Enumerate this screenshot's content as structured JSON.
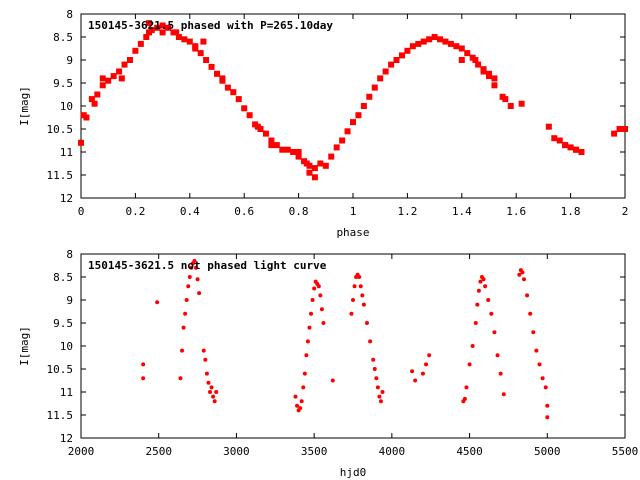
{
  "chart_data": [
    {
      "type": "scatter",
      "title": "150145-3621.5 phased with P=265.10day",
      "xlabel": "phase",
      "ylabel": "I[mag]",
      "xlim": [
        0,
        2
      ],
      "ylim": [
        12,
        8
      ],
      "y_inverted": true,
      "xticks": [
        "0",
        "0.2",
        "0.4",
        "0.6",
        "0.8",
        "1",
        "1.2",
        "1.4",
        "1.6",
        "1.8",
        "2"
      ],
      "yticks": [
        "8",
        "8.5",
        "9",
        "9.5",
        "10",
        "10.5",
        "11",
        "11.5",
        "12"
      ],
      "grid": false,
      "marker_color": "#ff0000",
      "series": [
        {
          "points": [
            [
              0.0,
              10.8
            ],
            [
              0.01,
              10.2
            ],
            [
              0.02,
              10.25
            ],
            [
              0.04,
              9.85
            ],
            [
              0.05,
              9.95
            ],
            [
              0.06,
              9.75
            ],
            [
              0.08,
              9.55
            ],
            [
              0.1,
              9.45
            ],
            [
              0.12,
              9.35
            ],
            [
              0.14,
              9.25
            ],
            [
              0.16,
              9.1
            ],
            [
              0.18,
              9.0
            ],
            [
              0.2,
              8.8
            ],
            [
              0.22,
              8.65
            ],
            [
              0.24,
              8.5
            ],
            [
              0.25,
              8.4
            ],
            [
              0.26,
              8.35
            ],
            [
              0.28,
              8.3
            ],
            [
              0.3,
              8.25
            ],
            [
              0.32,
              8.3
            ],
            [
              0.34,
              8.4
            ],
            [
              0.36,
              8.5
            ],
            [
              0.38,
              8.55
            ],
            [
              0.4,
              8.6
            ],
            [
              0.42,
              8.7
            ],
            [
              0.44,
              8.85
            ],
            [
              0.46,
              9.0
            ],
            [
              0.48,
              9.15
            ],
            [
              0.5,
              9.3
            ],
            [
              0.52,
              9.45
            ],
            [
              0.54,
              9.6
            ],
            [
              0.56,
              9.7
            ],
            [
              0.58,
              9.85
            ],
            [
              0.6,
              10.05
            ],
            [
              0.62,
              10.2
            ],
            [
              0.64,
              10.4
            ],
            [
              0.66,
              10.5
            ],
            [
              0.68,
              10.6
            ],
            [
              0.7,
              10.75
            ],
            [
              0.72,
              10.85
            ],
            [
              0.74,
              10.95
            ],
            [
              0.76,
              10.95
            ],
            [
              0.78,
              11.0
            ],
            [
              0.8,
              11.1
            ],
            [
              0.82,
              11.2
            ],
            [
              0.84,
              11.3
            ],
            [
              0.86,
              11.35
            ],
            [
              0.88,
              11.25
            ],
            [
              0.9,
              11.3
            ],
            [
              0.92,
              11.1
            ],
            [
              0.94,
              10.9
            ],
            [
              0.96,
              10.75
            ],
            [
              0.98,
              10.55
            ],
            [
              1.0,
              10.35
            ],
            [
              1.02,
              10.2
            ],
            [
              1.04,
              10.0
            ],
            [
              1.06,
              9.8
            ],
            [
              1.08,
              9.6
            ],
            [
              1.1,
              9.4
            ],
            [
              1.12,
              9.25
            ],
            [
              1.14,
              9.1
            ],
            [
              1.16,
              9.0
            ],
            [
              1.18,
              8.9
            ],
            [
              1.2,
              8.8
            ],
            [
              1.22,
              8.7
            ],
            [
              1.24,
              8.65
            ],
            [
              1.26,
              8.6
            ],
            [
              1.28,
              8.55
            ],
            [
              1.3,
              8.5
            ],
            [
              1.32,
              8.55
            ],
            [
              1.34,
              8.6
            ],
            [
              1.36,
              8.65
            ],
            [
              1.38,
              8.7
            ],
            [
              1.4,
              8.75
            ],
            [
              1.42,
              8.85
            ],
            [
              1.44,
              8.95
            ],
            [
              1.46,
              9.1
            ],
            [
              1.48,
              9.25
            ],
            [
              1.5,
              9.35
            ],
            [
              1.52,
              9.55
            ],
            [
              1.55,
              9.8
            ],
            [
              1.58,
              10.0
            ],
            [
              1.62,
              9.95
            ],
            [
              1.72,
              10.45
            ],
            [
              1.74,
              10.7
            ],
            [
              1.76,
              10.75
            ],
            [
              1.78,
              10.85
            ],
            [
              1.8,
              10.9
            ],
            [
              1.82,
              10.95
            ],
            [
              1.84,
              11.0
            ],
            [
              1.96,
              10.6
            ],
            [
              1.98,
              10.5
            ],
            [
              2.0,
              10.5
            ],
            [
              0.25,
              8.2
            ],
            [
              0.15,
              9.4
            ],
            [
              0.45,
              8.6
            ],
            [
              0.08,
              9.4
            ],
            [
              0.52,
              9.4
            ],
            [
              0.86,
              11.55
            ],
            [
              0.84,
              11.45
            ],
            [
              0.83,
              11.25
            ],
            [
              0.8,
              11.0
            ],
            [
              1.45,
              9.0
            ],
            [
              1.4,
              9.0
            ],
            [
              1.5,
              9.3
            ],
            [
              1.52,
              9.4
            ],
            [
              1.56,
              9.85
            ],
            [
              1.48,
              9.2
            ],
            [
              0.3,
              8.4
            ],
            [
              0.35,
              8.4
            ],
            [
              0.42,
              8.75
            ],
            [
              0.65,
              10.45
            ],
            [
              0.7,
              10.85
            ],
            [
              1.78,
              10.85
            ],
            [
              1.82,
              10.95
            ]
          ]
        }
      ]
    },
    {
      "type": "scatter",
      "title": "150145-3621.5 not phased light curve",
      "xlabel": "hjd0",
      "ylabel": "I[mag]",
      "xlim": [
        2000,
        5500
      ],
      "ylim": [
        12,
        8
      ],
      "y_inverted": true,
      "xticks": [
        "2000",
        "2500",
        "3000",
        "3500",
        "4000",
        "4500",
        "5000",
        "5500"
      ],
      "yticks": [
        "8",
        "8.5",
        "9",
        "9.5",
        "10",
        "10.5",
        "11",
        "11.5",
        "12"
      ],
      "grid": false,
      "marker_color": "#ff0000",
      "series": [
        {
          "points": [
            [
              2400,
              10.4
            ],
            [
              2400,
              10.7
            ],
            [
              2490,
              9.05
            ],
            [
              2640,
              10.7
            ],
            [
              2650,
              10.1
            ],
            [
              2660,
              9.6
            ],
            [
              2670,
              9.3
            ],
            [
              2680,
              9.0
            ],
            [
              2690,
              8.7
            ],
            [
              2700,
              8.5
            ],
            [
              2710,
              8.3
            ],
            [
              2720,
              8.2
            ],
            [
              2730,
              8.15
            ],
            [
              2740,
              8.3
            ],
            [
              2750,
              8.55
            ],
            [
              2760,
              8.85
            ],
            [
              2790,
              10.1
            ],
            [
              2800,
              10.3
            ],
            [
              2810,
              10.6
            ],
            [
              2820,
              10.8
            ],
            [
              2830,
              11.0
            ],
            [
              2840,
              10.9
            ],
            [
              2850,
              11.1
            ],
            [
              2860,
              11.2
            ],
            [
              2870,
              11.0
            ],
            [
              3380,
              11.1
            ],
            [
              3390,
              11.3
            ],
            [
              3400,
              11.4
            ],
            [
              3410,
              11.35
            ],
            [
              3420,
              11.2
            ],
            [
              3430,
              10.9
            ],
            [
              3440,
              10.6
            ],
            [
              3450,
              10.2
            ],
            [
              3460,
              9.9
            ],
            [
              3470,
              9.6
            ],
            [
              3480,
              9.3
            ],
            [
              3490,
              9.0
            ],
            [
              3500,
              8.75
            ],
            [
              3510,
              8.6
            ],
            [
              3520,
              8.65
            ],
            [
              3530,
              8.7
            ],
            [
              3540,
              8.9
            ],
            [
              3550,
              9.2
            ],
            [
              3560,
              9.5
            ],
            [
              3620,
              10.75
            ],
            [
              3740,
              9.3
            ],
            [
              3750,
              9.0
            ],
            [
              3760,
              8.7
            ],
            [
              3770,
              8.5
            ],
            [
              3780,
              8.45
            ],
            [
              3790,
              8.5
            ],
            [
              3800,
              8.7
            ],
            [
              3810,
              8.9
            ],
            [
              3820,
              9.1
            ],
            [
              3840,
              9.5
            ],
            [
              3860,
              9.9
            ],
            [
              3880,
              10.3
            ],
            [
              3890,
              10.5
            ],
            [
              3900,
              10.7
            ],
            [
              3910,
              10.9
            ],
            [
              3920,
              11.1
            ],
            [
              3930,
              11.2
            ],
            [
              3940,
              11.0
            ],
            [
              4130,
              10.55
            ],
            [
              4150,
              10.75
            ],
            [
              4200,
              10.6
            ],
            [
              4220,
              10.4
            ],
            [
              4240,
              10.2
            ],
            [
              4460,
              11.2
            ],
            [
              4470,
              11.15
            ],
            [
              4480,
              10.9
            ],
            [
              4500,
              10.4
            ],
            [
              4520,
              10.0
            ],
            [
              4540,
              9.5
            ],
            [
              4550,
              9.1
            ],
            [
              4560,
              8.8
            ],
            [
              4570,
              8.6
            ],
            [
              4580,
              8.5
            ],
            [
              4590,
              8.55
            ],
            [
              4600,
              8.7
            ],
            [
              4620,
              9.0
            ],
            [
              4640,
              9.3
            ],
            [
              4660,
              9.7
            ],
            [
              4680,
              10.2
            ],
            [
              4700,
              10.6
            ],
            [
              4720,
              11.05
            ],
            [
              4820,
              8.45
            ],
            [
              4830,
              8.35
            ],
            [
              4840,
              8.4
            ],
            [
              4850,
              8.55
            ],
            [
              4870,
              8.9
            ],
            [
              4890,
              9.3
            ],
            [
              4910,
              9.7
            ],
            [
              4930,
              10.1
            ],
            [
              4950,
              10.4
            ],
            [
              4970,
              10.7
            ],
            [
              4990,
              10.9
            ],
            [
              5000,
              11.3
            ],
            [
              5000,
              11.55
            ]
          ]
        }
      ]
    }
  ]
}
